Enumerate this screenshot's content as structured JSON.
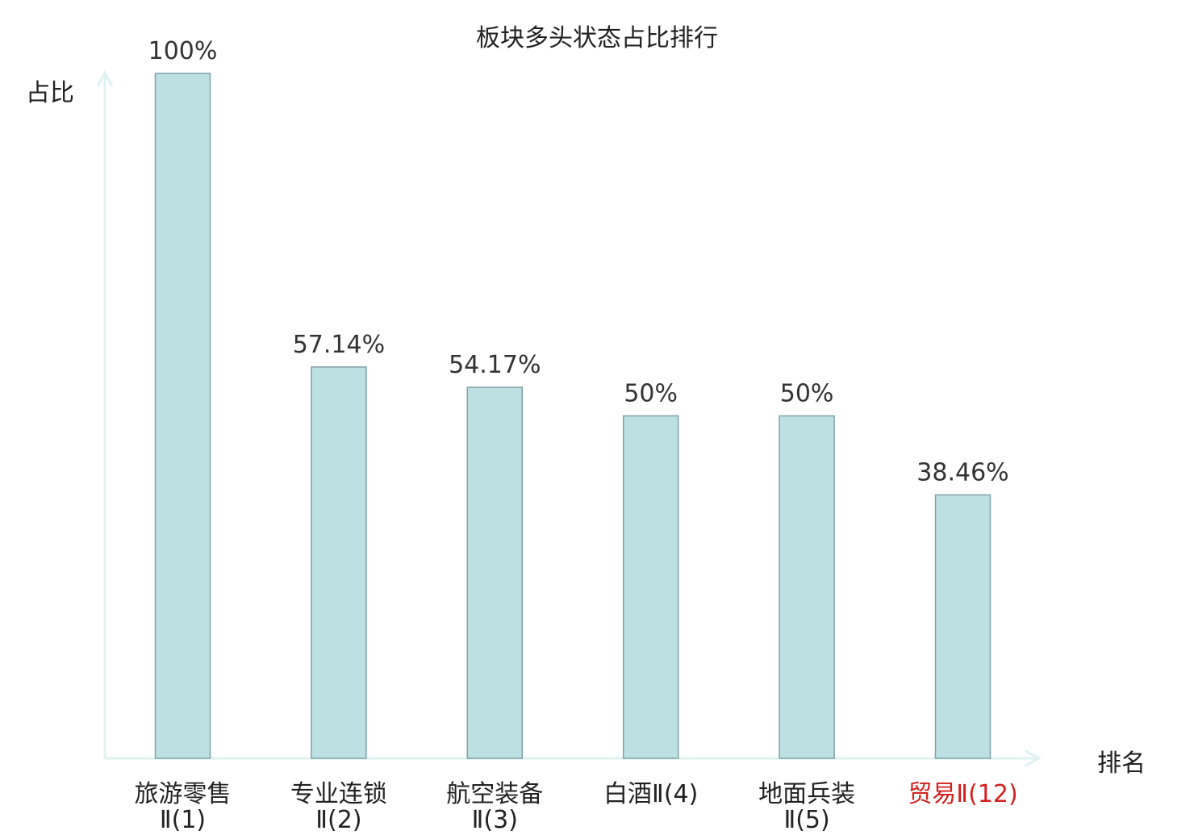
{
  "chart_data": {
    "type": "bar",
    "title": "板块多头状态占比排行",
    "ylabel": "占比",
    "xlabel": "排名",
    "ylim": [
      0,
      100
    ],
    "grid": false,
    "categories": [
      [
        "旅游零售",
        "Ⅱ(1)"
      ],
      [
        "专业连锁",
        "Ⅱ(2)"
      ],
      [
        "航空装备",
        "Ⅱ(3)"
      ],
      [
        "白酒Ⅱ(4)"
      ],
      [
        "地面兵装",
        "Ⅱ(5)"
      ],
      [
        "贸易Ⅱ(12)"
      ]
    ],
    "values": [
      100,
      57.14,
      54.17,
      50,
      50,
      38.46
    ],
    "value_labels": [
      "100%",
      "57.14%",
      "54.17%",
      "50%",
      "50%",
      "38.46%"
    ],
    "highlight_index": 5,
    "colors": {
      "bar_fill": "#bde0e2",
      "bar_stroke": "#7fa3a6",
      "axis": "#dff2ee",
      "label": "#222222",
      "value_label": "#333333",
      "highlight": "#d42020"
    }
  }
}
